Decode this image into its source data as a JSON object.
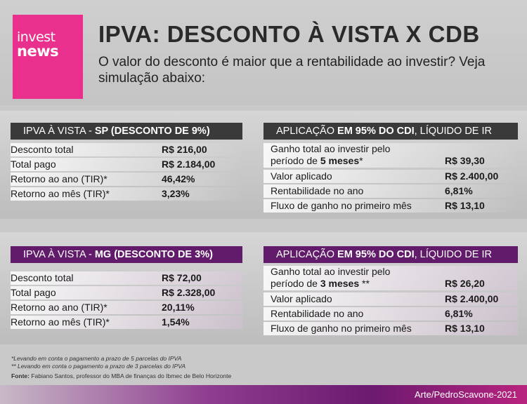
{
  "logo": {
    "line1": "invest",
    "line2": "news"
  },
  "title": "IPVA: DESCONTO À VISTA X CDB",
  "subtitle": "O valor do desconto é maior que a rentabilidade ao investir? Veja simulação abaixo:",
  "sp": {
    "left_header_pre": "IPVA À VISTA - ",
    "left_header_bold": "SP (DESCONTO DE 9%)",
    "left_rows": [
      {
        "label": "Desconto total",
        "value": "R$ 216,00"
      },
      {
        "label": "Total pago",
        "value": "R$ 2.184,00"
      },
      {
        "label": "Retorno ao ano (TIR)*",
        "value": "46,42%"
      },
      {
        "label": "Retorno ao mês (TIR)*",
        "value": "3,23%"
      }
    ],
    "right_header_pre": "APLICAÇÃO ",
    "right_header_bold": "EM 95% DO CDI",
    "right_header_post": ", LÍQUIDO DE IR",
    "right_first": {
      "label_line1": "Ganho total ao investir pelo",
      "label_line2_pre": "período de ",
      "label_line2_bold": "5 meses",
      "label_line2_post": "*",
      "value": "R$ 39,30"
    },
    "right_rows": [
      {
        "label": "Valor aplicado",
        "value": "R$ 2.400,00"
      },
      {
        "label": "Rentabilidade no ano",
        "value": "6,81%"
      },
      {
        "label": "Fluxo de ganho no primeiro mês",
        "value": "R$ 13,10"
      }
    ]
  },
  "mg": {
    "left_header_pre": "IPVA À VISTA - ",
    "left_header_bold": "MG (DESCONTO DE 3%)",
    "left_rows": [
      {
        "label": "Desconto total",
        "value": "R$ 72,00"
      },
      {
        "label": "Total pago",
        "value": "R$ 2.328,00"
      },
      {
        "label": "Retorno ao ano (TIR)*",
        "value": "20,11%"
      },
      {
        "label": "Retorno ao mês (TIR)*",
        "value": "1,54%"
      }
    ],
    "right_header_pre": "APLICAÇÃO ",
    "right_header_bold": "EM 95% DO CDI",
    "right_header_post": ", LÍQUIDO DE IR",
    "right_first": {
      "label_line1": "Ganho total ao investir pelo",
      "label_line2_pre": "período de ",
      "label_line2_bold": "3 meses",
      "label_line2_post": " **",
      "value": "R$ 26,20"
    },
    "right_rows": [
      {
        "label": "Valor aplicado",
        "value": "R$ 2.400,00"
      },
      {
        "label": "Rentabilidade no ano",
        "value": "6,81%"
      },
      {
        "label": "Fluxo de ganho no primeiro mês",
        "value": "R$ 13,10"
      }
    ]
  },
  "notes": {
    "note1": "*Levando em conta o pagamento a prazo de 5 parcelas do IPVA",
    "note2": "** Levando em conta o pagamento a prazo de 3 parcelas do IPVA",
    "source_label": "Fonte:",
    "source_text": " Fabiano Santos, professor do MBA de finanças do Ibmec de Belo Horizonte"
  },
  "credit": "Arte/PedroScavone-2021",
  "colors": {
    "brand_pink": "#e8308c",
    "mg_purple": "#621a6a",
    "sp_dark": "#3a3a3a"
  }
}
